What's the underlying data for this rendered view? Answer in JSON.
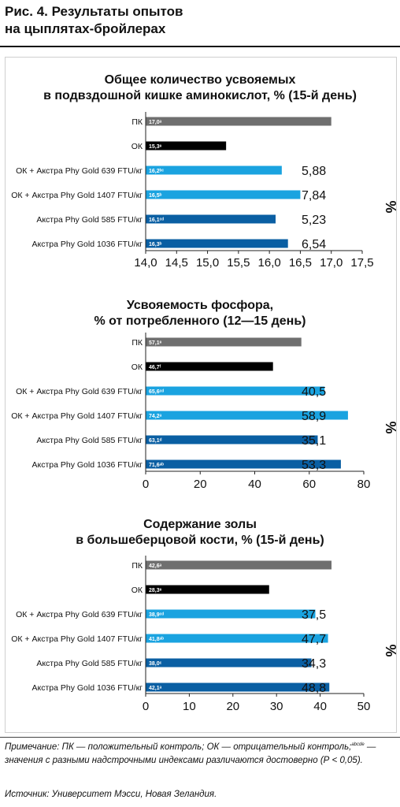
{
  "figure": {
    "title_line1": "Рис. 4. Результаты опытов",
    "title_line2": "на цыплятах-бройлерах"
  },
  "colors": {
    "pk": "#6f6f6f",
    "ok": "#000000",
    "light_blue": "#1aa3e0",
    "dark_blue": "#0a5fa3"
  },
  "chart_data": [
    {
      "type": "bar",
      "orientation": "horizontal",
      "title_line1": "Общее количество усвояемых",
      "title_line2": "в подвздошной кишке аминокислот, % (15-й день)",
      "categories": [
        "ПК",
        "ОК",
        "ОК + Акстра Phy Gold 639 FTU/кг",
        "ОК + Акстра Phy Gold 1407 FTU/кг",
        "Акстра Phy Gold 585 FTU/кг",
        "Акстра Phy Gold 1036 FTU/кг"
      ],
      "values": [
        17.0,
        15.3,
        16.2,
        16.5,
        16.1,
        16.3
      ],
      "bar_labels": [
        "17,0ᵃ",
        "15,3ᵉ",
        "16,2ᵇᶜ",
        "16,5ᵇ",
        "16,1ᶜᵈ",
        "16,3ᵇ"
      ],
      "side_values": [
        "",
        "",
        "5,88",
        "7,84",
        "5,23",
        "6,54"
      ],
      "side_unit": "%",
      "bar_colors": [
        "pk",
        "ok",
        "light_blue",
        "light_blue",
        "dark_blue",
        "dark_blue"
      ],
      "xlim": [
        14.0,
        17.5
      ],
      "xticks": [
        14.0,
        14.5,
        15.0,
        15.5,
        16.0,
        16.5,
        17.0,
        17.5
      ],
      "xtick_labels": [
        "14,0",
        "14,5",
        "15,0",
        "15,5",
        "16,0",
        "16,5",
        "17,0",
        "17,5"
      ],
      "grid": false
    },
    {
      "type": "bar",
      "orientation": "horizontal",
      "title_line1": "Усвояемость фосфора,",
      "title_line2": "% от потребленного (12—15 день)",
      "categories": [
        "ПК",
        "ОК",
        "ОК + Акстра Phy Gold 639 FTU/кг",
        "ОК + Акстра Phy Gold 1407 FTU/кг",
        "Акстра Phy Gold 585 FTU/кг",
        "Акстра Phy Gold 1036 FTU/кг"
      ],
      "values": [
        57.1,
        46.7,
        65.6,
        74.2,
        63.1,
        71.6
      ],
      "bar_labels": [
        "57,1ᵉ",
        "46,7ᶠ",
        "65,6ᶜᵈ",
        "74,2ᵃ",
        "63,1ᵈ",
        "71,6ᵃᵇ"
      ],
      "side_values": [
        "",
        "",
        "40,5",
        "58,9",
        "35,1",
        "53,3"
      ],
      "side_unit": "%",
      "bar_colors": [
        "pk",
        "ok",
        "light_blue",
        "light_blue",
        "dark_blue",
        "dark_blue"
      ],
      "xlim": [
        0,
        80
      ],
      "xticks": [
        0,
        20,
        40,
        60,
        80
      ],
      "xtick_labels": [
        "0",
        "20",
        "40",
        "60",
        "80"
      ],
      "grid": false
    },
    {
      "type": "bar",
      "orientation": "horizontal",
      "title_line1": "Содержание золы",
      "title_line2": "в большеберцовой кости, % (15-й день)",
      "categories": [
        "ПК",
        "ОК",
        "ОК + Акстра Phy Gold 639 FTU/кг",
        "ОК + Акстра Phy Gold 1407 FTU/кг",
        "Акстра Phy Gold 585 FTU/кг",
        "Акстра Phy Gold 1036 FTU/кг"
      ],
      "values": [
        42.6,
        28.3,
        38.9,
        41.8,
        38.0,
        42.1
      ],
      "bar_labels": [
        "42,6ᵃ",
        "28,3ᵉ",
        "38,9ᶜᵈ",
        "41,8ᵃᵇ",
        "38,0ᶜ",
        "42,1ᵃ"
      ],
      "side_values": [
        "",
        "",
        "37,5",
        "47,7",
        "34,3",
        "48,8"
      ],
      "side_unit": "%",
      "bar_colors": [
        "pk",
        "ok",
        "light_blue",
        "light_blue",
        "dark_blue",
        "dark_blue"
      ],
      "xlim": [
        0,
        50
      ],
      "xticks": [
        0,
        10,
        20,
        30,
        40,
        50
      ],
      "xtick_labels": [
        "0",
        "10",
        "20",
        "30",
        "40",
        "50"
      ],
      "grid": false
    }
  ],
  "note": {
    "lead": "Примечание:",
    "part1": " ПК — положительный контроль; ОК — отрицательный контроль;",
    "sup": "abcde",
    "part2": " — значения с разными надстрочными индексами различаются достоверно (Р < 0,05)."
  },
  "source": {
    "lead": "Источник:",
    "text": " Университет Мэсси, Новая Зеландия."
  }
}
